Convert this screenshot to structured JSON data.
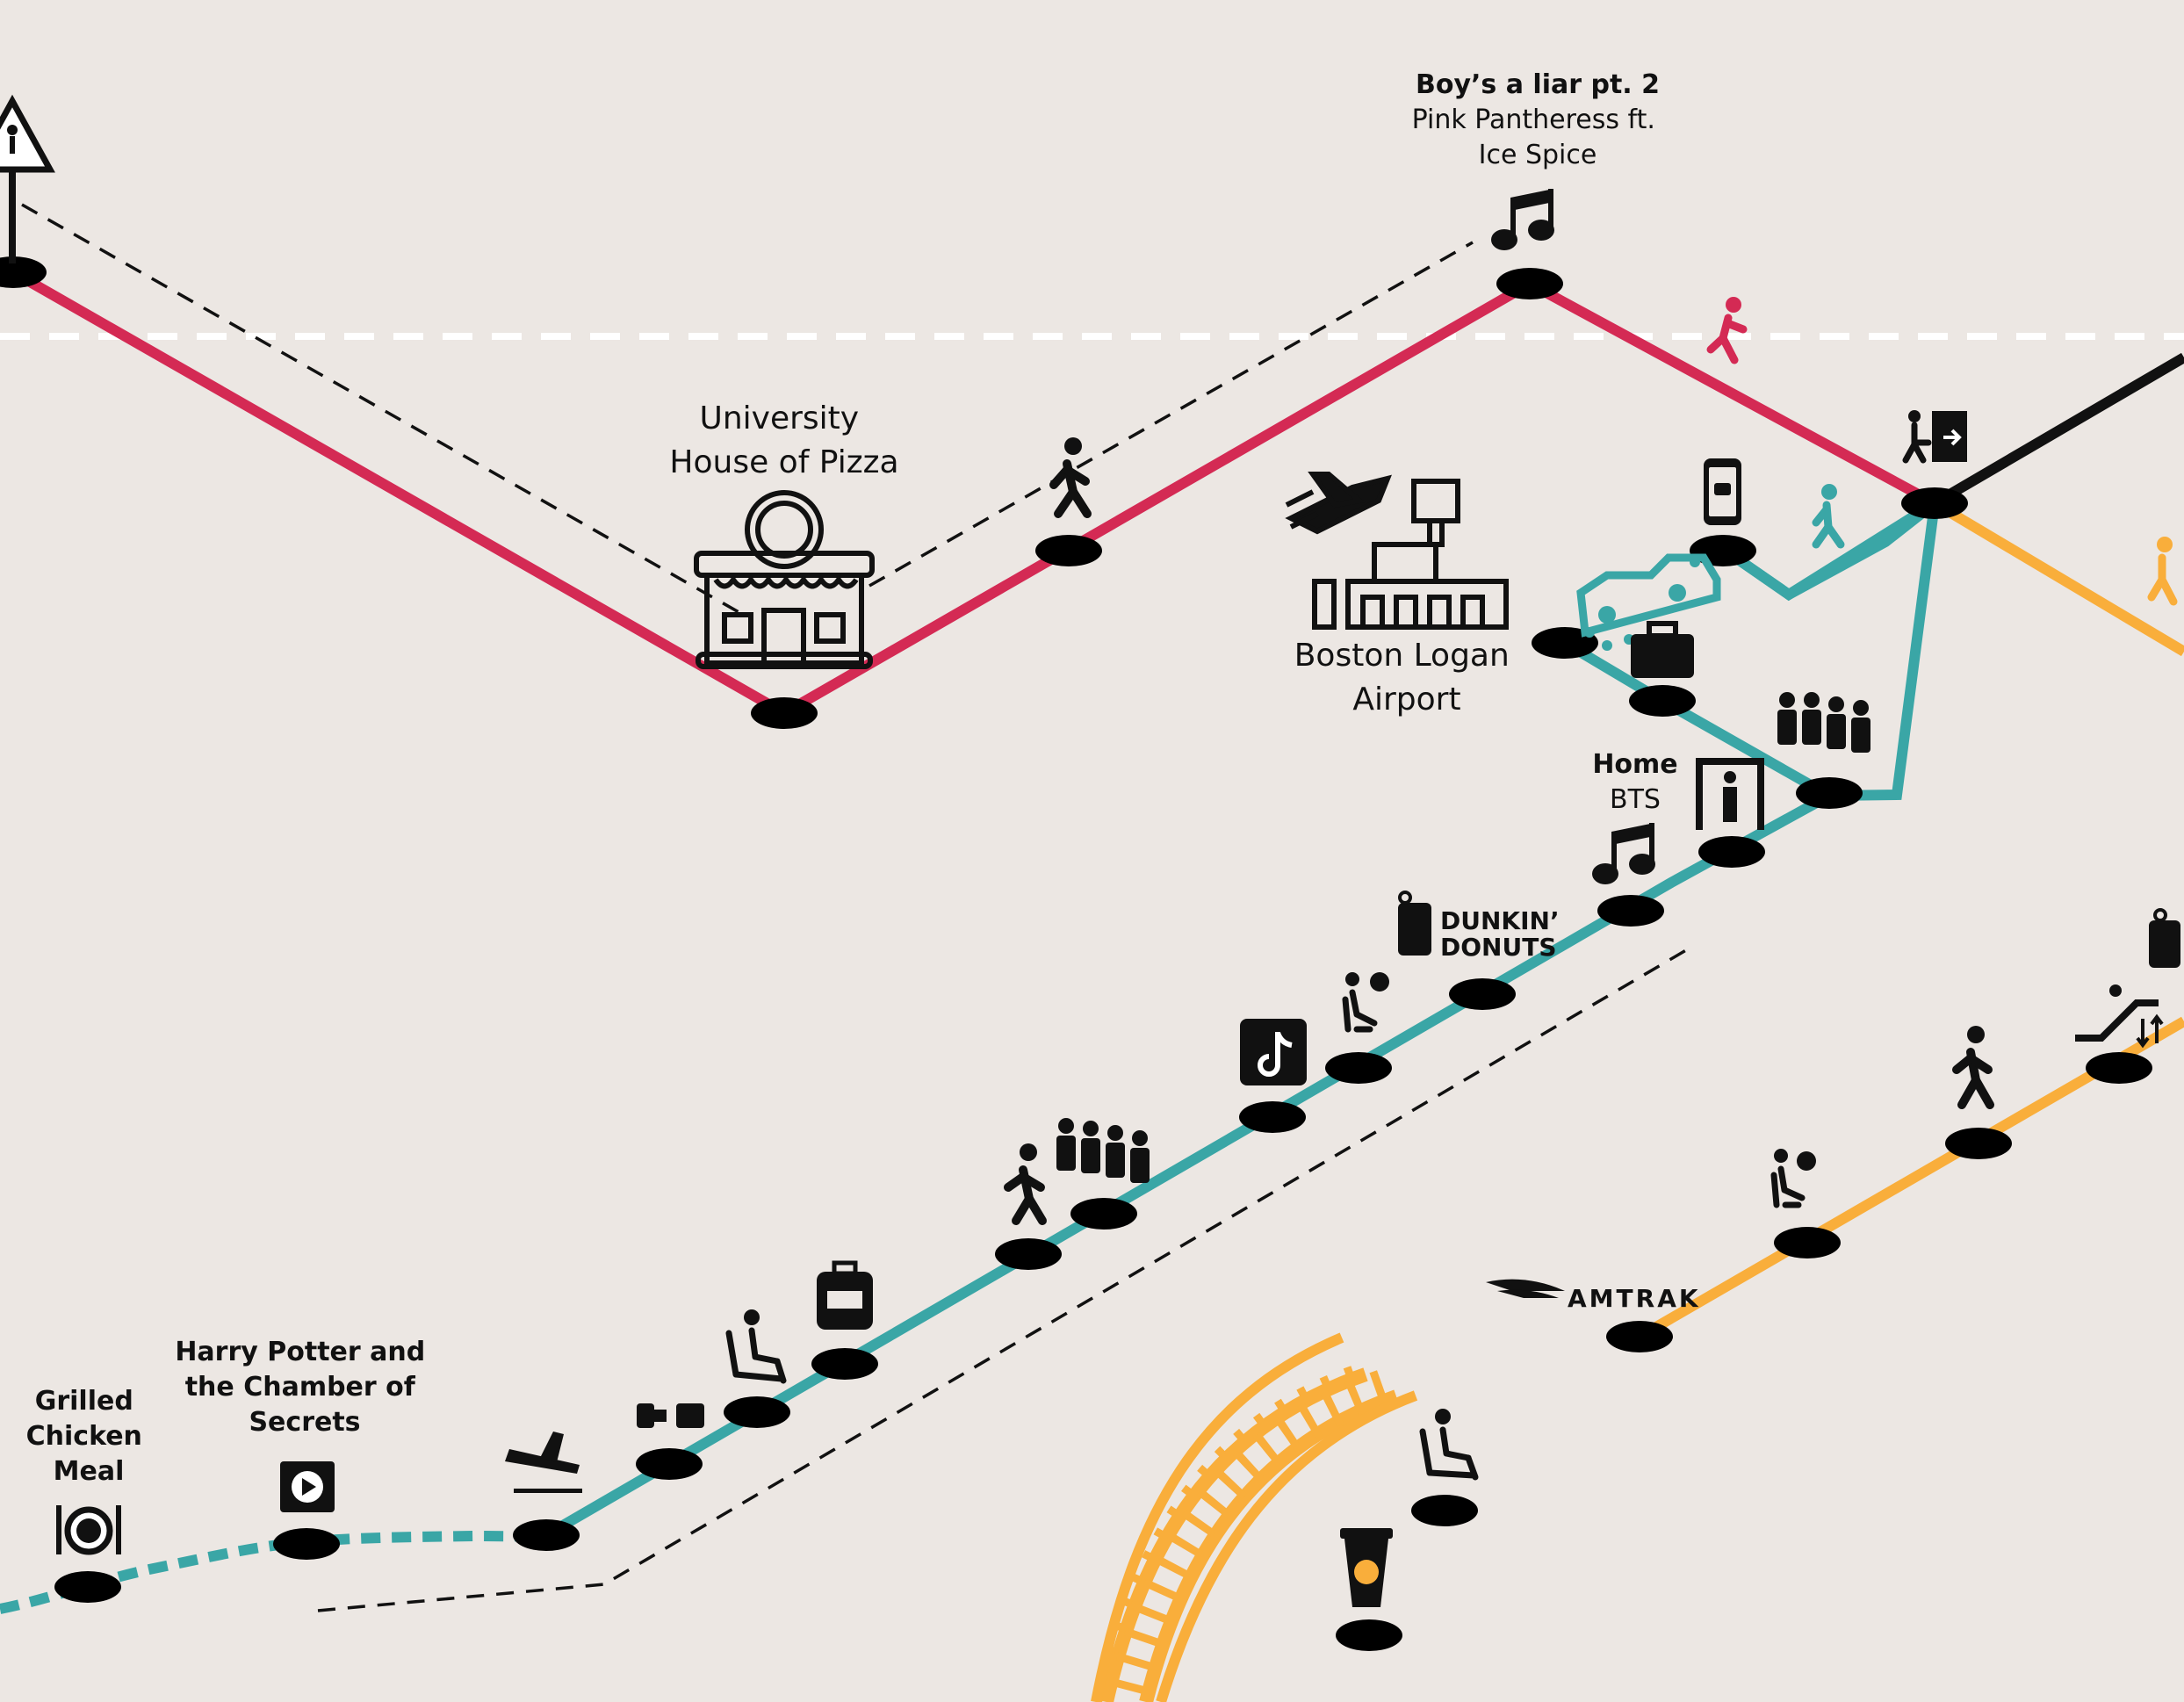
{
  "colors": {
    "background": "#ece7e3",
    "red_line": "#d42a54",
    "teal_line": "#3aa6a6",
    "orange_line": "#f9ae3b",
    "black_line": "#111111",
    "stop": "#000000"
  },
  "labels": {
    "pizza": [
      "University",
      "House of Pizza"
    ],
    "airport": [
      "Boston Logan",
      "Airport"
    ],
    "song1_title": "Boy’s a liar pt. 2",
    "song1_artist": [
      "Pink Pantheress ft.",
      "Ice Spice"
    ],
    "song2_title": "Home",
    "song2_artist": "BTS",
    "movie": [
      "Harry Potter and",
      "the Chamber of",
      "Secrets"
    ],
    "meal": [
      "Grilled",
      "Chicken",
      "Meal"
    ],
    "dunkin": [
      "DUNKIN’",
      "DONUTS"
    ],
    "amtrak": "AMTRAK"
  },
  "icons": [
    "crosswalk-sign-icon",
    "music-note-icon",
    "walking-person-icon",
    "running-person-icon",
    "exit-door-icon",
    "rideshare-phone-icon",
    "car-icon",
    "airport-icon",
    "pizza-shop-icon",
    "luggage-icon",
    "queue-people-icon",
    "security-scanner-icon",
    "dunkin-cup-icon",
    "waiting-seat-icon",
    "tiktok-icon",
    "backpack-icon",
    "seated-person-icon",
    "seatbelt-icon",
    "takeoff-icon",
    "video-icon",
    "plate-cutlery-icon",
    "escalator-icon",
    "amtrak-logo-icon",
    "coffee-cup-icon",
    "railroad-track-icon"
  ]
}
